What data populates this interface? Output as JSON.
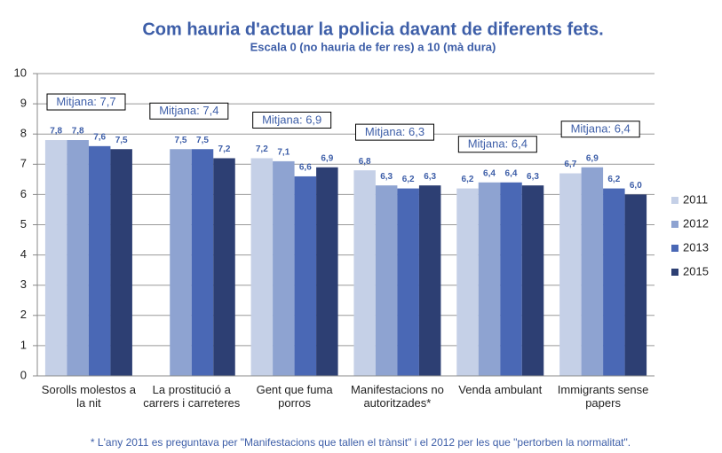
{
  "chart_data": {
    "type": "bar",
    "title": "Com hauria d'actuar la policia davant de diferents fets.",
    "subtitle": "Escala 0 (no hauria de fer res) a 10 (mà dura)",
    "categories": [
      "Sorolls molestos a la nit",
      "La prostitució a carrers i carreteres",
      "Gent que fuma porros",
      "Manifestacions no autoritzades*",
      "Venda ambulant",
      "Immigrants sense papers"
    ],
    "series": [
      {
        "name": "2011",
        "color": "#c5d0e7",
        "values": [
          7.8,
          null,
          7.2,
          6.8,
          6.2,
          6.7
        ],
        "value_labels": [
          "7,8",
          null,
          "7,2",
          "6,8",
          "6,2",
          "6,7"
        ]
      },
      {
        "name": "2012",
        "color": "#8ea3d1",
        "values": [
          7.8,
          7.5,
          7.1,
          6.3,
          6.4,
          6.9
        ],
        "value_labels": [
          "7,8",
          "7,5",
          "7,1",
          "6,3",
          "6,4",
          "6,9"
        ]
      },
      {
        "name": "2013",
        "color": "#4a68b5",
        "values": [
          7.6,
          7.5,
          6.6,
          6.2,
          6.4,
          6.2
        ],
        "value_labels": [
          "7,6",
          "7,5",
          "6,6",
          "6,2",
          "6,4",
          "6,2"
        ]
      },
      {
        "name": "2015",
        "color": "#2d3f73",
        "values": [
          7.5,
          7.2,
          6.9,
          6.3,
          6.3,
          6.0
        ],
        "value_labels": [
          "7,5",
          "7,2",
          "6,9",
          "6,3",
          "6,3",
          "6,0"
        ]
      }
    ],
    "annotations": [
      "Mitjana: 7,7",
      "Mitjana: 7,4",
      "Mitjana: 6,9",
      "Mitjana: 6,3",
      "Mitjana: 6,4",
      "Mitjana: 6,4"
    ],
    "ylim": [
      0,
      10
    ],
    "yticks": [
      0,
      1,
      2,
      3,
      4,
      5,
      6,
      7,
      8,
      9,
      10
    ],
    "grid": true,
    "legend": "right",
    "footnote": "* L'any 2011 es preguntava per \"Manifestacions que tallen el trànsit\" i el 2012 per les que \"pertorben la normalitat\"."
  }
}
